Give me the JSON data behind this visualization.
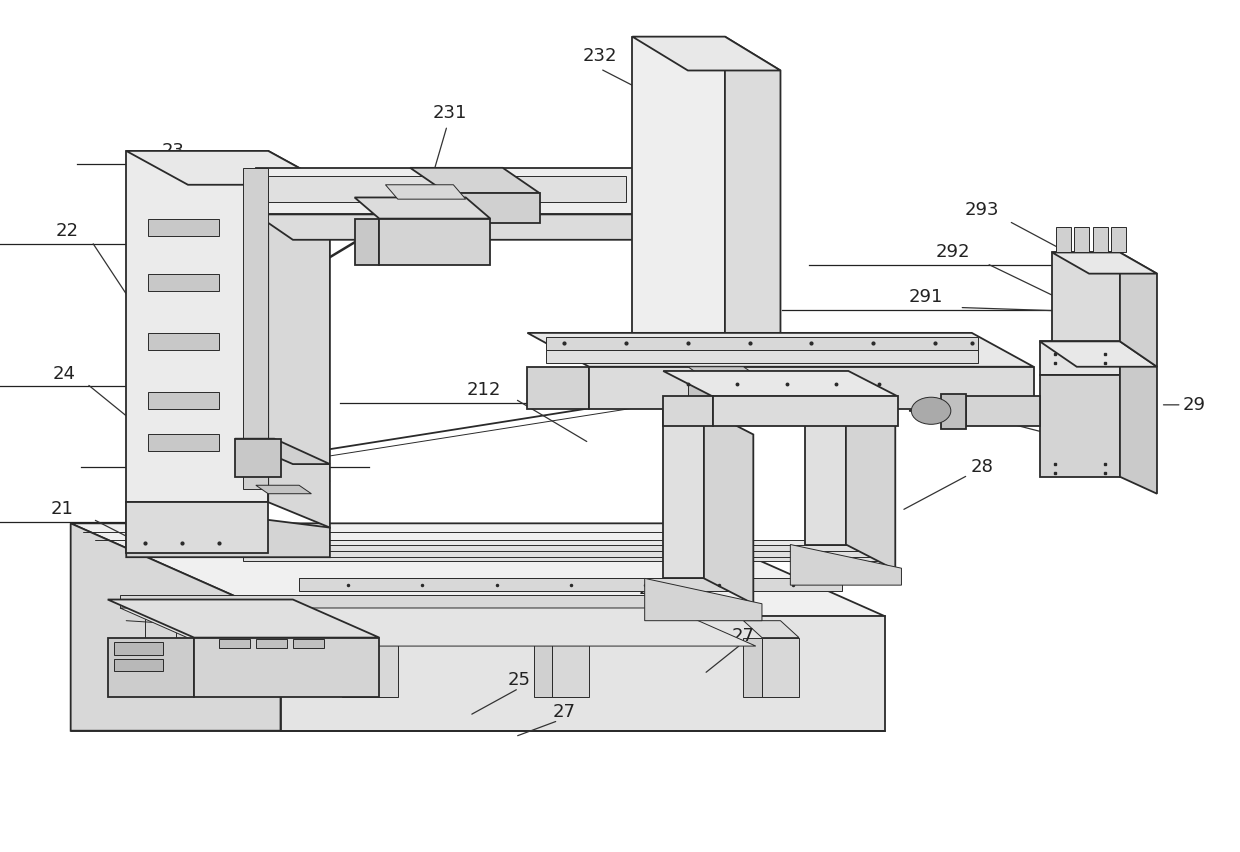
{
  "bg_color": "#ffffff",
  "line_color": "#2a2a2a",
  "label_color": "#222222",
  "figsize": [
    12.4,
    8.52
  ],
  "dpi": 100
}
